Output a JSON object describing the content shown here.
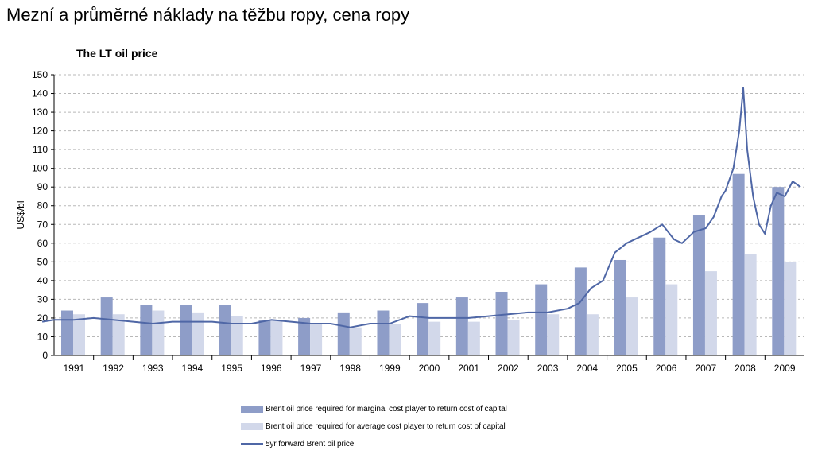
{
  "page": {
    "title": "Mezní a průměrné náklady na těžbu ropy, cena ropy"
  },
  "chart_data": {
    "type": "bar",
    "title": "The LT oil price",
    "xlabel": "",
    "ylabel": "US$/bl",
    "ylim": [
      0,
      150
    ],
    "yticks": [
      0,
      10,
      20,
      30,
      40,
      50,
      60,
      70,
      80,
      90,
      100,
      110,
      120,
      130,
      140,
      150
    ],
    "grid": true,
    "legend_position": "bottom",
    "categories": [
      "1991",
      "1992",
      "1993",
      "1994",
      "1995",
      "1996",
      "1997",
      "1998",
      "1999",
      "2000",
      "2001",
      "2002",
      "2003",
      "2004",
      "2005",
      "2006",
      "2007",
      "2008",
      "2009"
    ],
    "series": [
      {
        "name": "Brent oil price required for marginal cost player to return cost of capital",
        "kind": "bar",
        "color": "#8e9dc8",
        "values": [
          24,
          31,
          27,
          27,
          27,
          19,
          20,
          23,
          24,
          28,
          31,
          34,
          38,
          47,
          51,
          63,
          75,
          97,
          90
        ]
      },
      {
        "name": "Brent oil price required for average cost player to return cost of capital",
        "kind": "bar",
        "color": "#d2d8ea",
        "values": [
          22,
          22,
          24,
          23,
          21,
          19,
          17,
          15,
          17,
          18,
          18,
          19,
          22,
          22,
          31,
          38,
          45,
          54,
          50
        ]
      },
      {
        "name": "5yr forward Brent oil price",
        "kind": "line",
        "color": "#4f67a6",
        "x": [
          1990.7,
          1991.0,
          1991.5,
          1992.0,
          1992.5,
          1993.0,
          1993.5,
          1994.0,
          1994.5,
          1995.0,
          1995.5,
          1996.0,
          1996.5,
          1997.0,
          1997.5,
          1998.0,
          1998.5,
          1999.0,
          1999.5,
          2000.0,
          2000.5,
          2001.0,
          2001.5,
          2002.0,
          2002.5,
          2003.0,
          2003.5,
          2004.0,
          2004.3,
          2004.6,
          2004.9,
          2005.2,
          2005.5,
          2005.8,
          2006.1,
          2006.4,
          2006.7,
          2006.9,
          2007.2,
          2007.5,
          2007.7,
          2007.9,
          2008.0,
          2008.2,
          2008.35,
          2008.45,
          2008.55,
          2008.7,
          2008.85,
          2009.0,
          2009.15,
          2009.3,
          2009.5,
          2009.7,
          2009.9
        ],
        "values": [
          18,
          19,
          19,
          20,
          19,
          18,
          17,
          18,
          18,
          18,
          17,
          17,
          19,
          18,
          17,
          17,
          15,
          17,
          17,
          21,
          20,
          20,
          20,
          21,
          22,
          23,
          23,
          25,
          28,
          36,
          40,
          55,
          60,
          63,
          66,
          70,
          62,
          60,
          66,
          68,
          74,
          85,
          88,
          100,
          120,
          143,
          110,
          85,
          70,
          65,
          80,
          87,
          85,
          93,
          90
        ]
      }
    ]
  }
}
